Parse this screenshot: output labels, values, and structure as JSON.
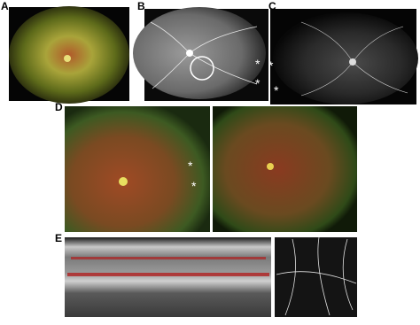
{
  "panels": [
    {
      "label": "A"
    },
    {
      "label": "B",
      "annotations": [
        "*",
        "*"
      ]
    },
    {
      "label": "C",
      "annotations": [
        "*",
        "*"
      ]
    },
    {
      "label": "D",
      "annotations": [
        "*",
        "*"
      ]
    },
    {
      "label": "E"
    }
  ]
}
